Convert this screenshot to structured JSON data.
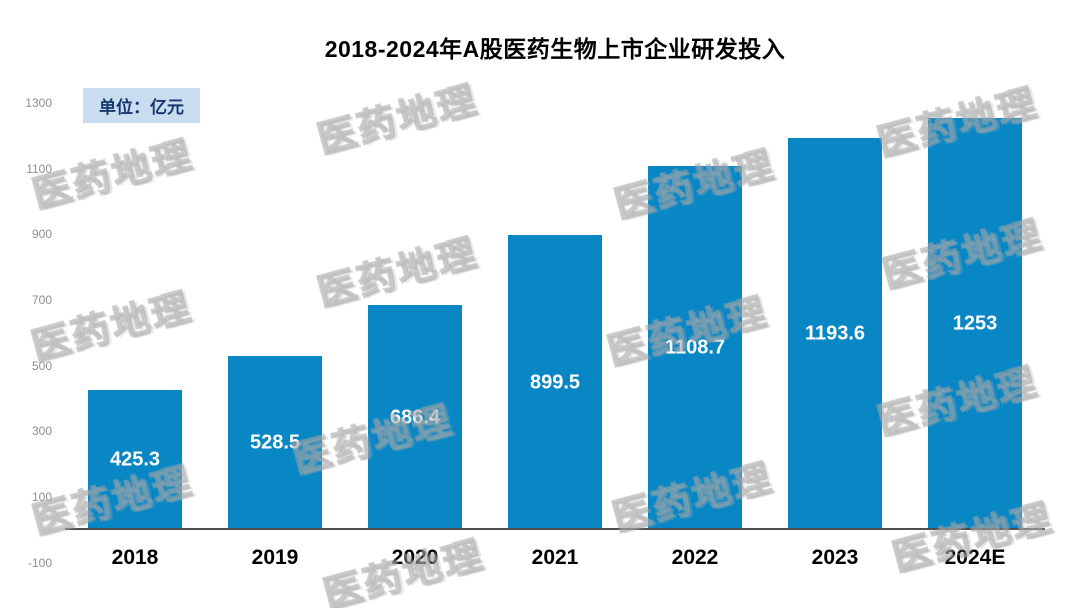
{
  "title": "2018-2024年A股医药生物上市企业研发投入",
  "unit_label": "单位：亿元",
  "watermark": {
    "text": "医药地理"
  },
  "colors": {
    "bar": "#0987c5",
    "badge_bg": "#c9ddf1",
    "badge_text": "#17376e",
    "axis_line": "#4d4d4d",
    "bar_value_text": "#ffffff",
    "tick_text": "#8f8f8f"
  },
  "chart_data": {
    "type": "bar",
    "title": "2018-2024年A股医药生物上市企业研发投入",
    "unit": "亿元",
    "categories": [
      "2018",
      "2019",
      "2020",
      "2021",
      "2022",
      "2023",
      "2024E"
    ],
    "values": [
      425.3,
      528.5,
      686.4,
      899.5,
      1108.7,
      1193.6,
      1253
    ],
    "value_labels": [
      "425.3",
      "528.5",
      "686.4",
      "899.5",
      "1108.7",
      "1193.6",
      "1253"
    ],
    "xlabel": "",
    "ylabel": "",
    "y_ticks": [
      -100,
      100,
      300,
      500,
      700,
      900,
      1100,
      1300
    ],
    "ylim": [
      -100,
      1300
    ],
    "grid": false,
    "legend": false,
    "bar_color": "#0987c5",
    "value_label_position": "center-inside"
  }
}
